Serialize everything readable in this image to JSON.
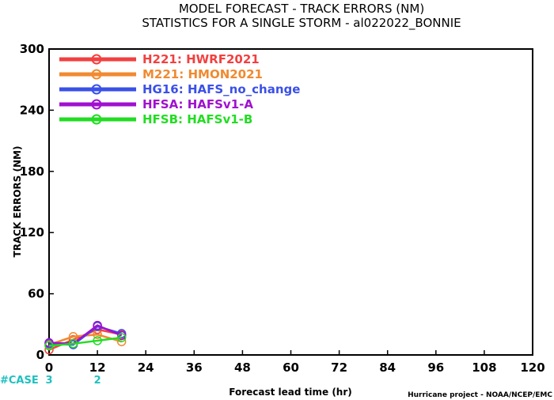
{
  "chart_data": {
    "type": "line",
    "title": "MODEL FORECAST - TRACK ERRORS (NM)",
    "subtitle": "STATISTICS FOR A SINGLE STORM - al022022_BONNIE",
    "xlabel": "Forecast lead time (hr)",
    "ylabel": "TRACK ERRORS (NM)",
    "xlim": [
      0,
      120
    ],
    "ylim": [
      0,
      300
    ],
    "xticks": [
      "0",
      "12",
      "24",
      "36",
      "48",
      "60",
      "72",
      "84",
      "96",
      "108",
      "120"
    ],
    "yticks": [
      "0",
      "60",
      "120",
      "180",
      "240",
      "300"
    ],
    "grid": false,
    "legend_position": "top-left",
    "series": [
      {
        "name": "H221: HWRF2021",
        "color": "#f24040",
        "x": [
          0,
          6,
          12,
          18
        ],
        "values": [
          5,
          15,
          25,
          20
        ]
      },
      {
        "name": "M221: HMON2021",
        "color": "#f08a30",
        "x": [
          0,
          6,
          12,
          18
        ],
        "values": [
          10,
          18,
          20,
          13
        ]
      },
      {
        "name": "HG16: HAFS_no_change",
        "color": "#3a50e8",
        "x": [
          0,
          6,
          12,
          18
        ],
        "values": [
          11,
          10,
          28,
          21
        ]
      },
      {
        "name": "HFSA: HAFSv1-A",
        "color": "#a010d0",
        "x": [
          0,
          6,
          12,
          18
        ],
        "values": [
          12,
          11,
          29,
          19
        ]
      },
      {
        "name": "HFSB: HAFSv1-B",
        "color": "#22dd22",
        "x": [
          0,
          6,
          12,
          18
        ],
        "values": [
          9,
          11,
          14,
          17
        ]
      }
    ],
    "cases": {
      "label": "#CASE",
      "color": "#20c0c0",
      "items": [
        {
          "x": 0,
          "count": "3"
        },
        {
          "x": 12,
          "count": "2"
        }
      ]
    },
    "credit": "Hurricane project - NOAA/NCEP/EMC"
  }
}
